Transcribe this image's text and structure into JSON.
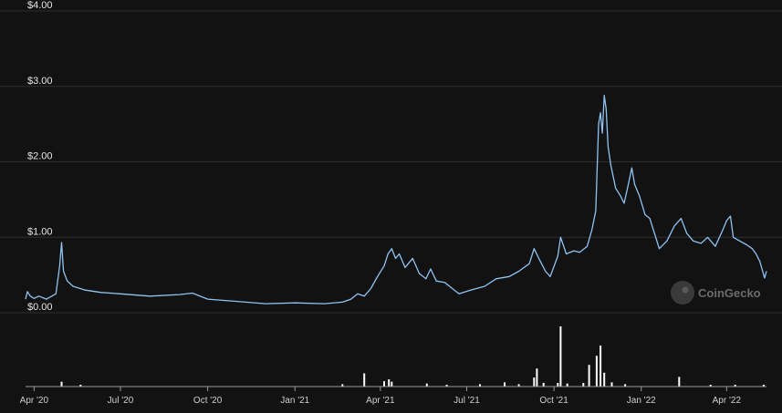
{
  "chart_data": {
    "type": "line",
    "background": "#121212",
    "line_color": "#8fc3f2",
    "grid_color": "#2f2f2f",
    "volume_color": "#ffffff",
    "grid": true,
    "y_ticks": [
      "$4.00",
      "$3.00",
      "$2.00",
      "$1.00",
      "$0.00"
    ],
    "y_tick_values": [
      4,
      3,
      2,
      1,
      0
    ],
    "ylim": [
      0,
      4
    ],
    "x_ticks": [
      "Apr '20",
      "Jul '20",
      "Oct '20",
      "Jan '21",
      "Apr '21",
      "Jul '21",
      "Oct '21",
      "Jan '22",
      "Apr '22"
    ],
    "x_tick_dates": [
      "2020-04-01",
      "2020-07-01",
      "2020-10-01",
      "2021-01-01",
      "2021-04-01",
      "2021-07-01",
      "2021-10-01",
      "2022-01-01",
      "2022-04-01"
    ],
    "x_range": [
      "2020-03-23",
      "2022-05-13"
    ],
    "price_series": {
      "name": "",
      "points": [
        [
          "2020-03-23",
          0.18
        ],
        [
          "2020-03-25",
          0.28
        ],
        [
          "2020-03-28",
          0.22
        ],
        [
          "2020-04-01",
          0.19
        ],
        [
          "2020-04-06",
          0.22
        ],
        [
          "2020-04-14",
          0.18
        ],
        [
          "2020-04-24",
          0.25
        ],
        [
          "2020-04-28",
          0.62
        ],
        [
          "2020-04-30",
          0.93
        ],
        [
          "2020-05-02",
          0.55
        ],
        [
          "2020-05-06",
          0.42
        ],
        [
          "2020-05-12",
          0.35
        ],
        [
          "2020-05-25",
          0.3
        ],
        [
          "2020-06-10",
          0.27
        ],
        [
          "2020-07-01",
          0.25
        ],
        [
          "2020-08-01",
          0.22
        ],
        [
          "2020-09-01",
          0.24
        ],
        [
          "2020-09-15",
          0.26
        ],
        [
          "2020-10-01",
          0.18
        ],
        [
          "2020-11-01",
          0.15
        ],
        [
          "2020-12-01",
          0.12
        ],
        [
          "2021-01-01",
          0.13
        ],
        [
          "2021-02-01",
          0.12
        ],
        [
          "2021-02-20",
          0.14
        ],
        [
          "2021-03-01",
          0.18
        ],
        [
          "2021-03-08",
          0.25
        ],
        [
          "2021-03-15",
          0.22
        ],
        [
          "2021-03-22",
          0.32
        ],
        [
          "2021-03-29",
          0.48
        ],
        [
          "2021-04-05",
          0.62
        ],
        [
          "2021-04-09",
          0.78
        ],
        [
          "2021-04-13",
          0.85
        ],
        [
          "2021-04-17",
          0.72
        ],
        [
          "2021-04-21",
          0.78
        ],
        [
          "2021-04-27",
          0.6
        ],
        [
          "2021-05-05",
          0.72
        ],
        [
          "2021-05-12",
          0.52
        ],
        [
          "2021-05-19",
          0.45
        ],
        [
          "2021-05-24",
          0.58
        ],
        [
          "2021-05-30",
          0.42
        ],
        [
          "2021-06-08",
          0.4
        ],
        [
          "2021-06-18",
          0.3
        ],
        [
          "2021-06-23",
          0.25
        ],
        [
          "2021-07-05",
          0.3
        ],
        [
          "2021-07-20",
          0.35
        ],
        [
          "2021-08-01",
          0.45
        ],
        [
          "2021-08-15",
          0.48
        ],
        [
          "2021-08-25",
          0.55
        ],
        [
          "2021-09-05",
          0.65
        ],
        [
          "2021-09-10",
          0.85
        ],
        [
          "2021-09-15",
          0.72
        ],
        [
          "2021-09-22",
          0.55
        ],
        [
          "2021-09-27",
          0.48
        ],
        [
          "2021-10-05",
          0.75
        ],
        [
          "2021-10-08",
          1.0
        ],
        [
          "2021-10-14",
          0.78
        ],
        [
          "2021-10-22",
          0.82
        ],
        [
          "2021-10-28",
          0.8
        ],
        [
          "2021-11-05",
          0.88
        ],
        [
          "2021-11-10",
          1.1
        ],
        [
          "2021-11-14",
          1.35
        ],
        [
          "2021-11-17",
          2.5
        ],
        [
          "2021-11-19",
          2.65
        ],
        [
          "2021-11-21",
          2.38
        ],
        [
          "2021-11-23",
          2.88
        ],
        [
          "2021-11-25",
          2.7
        ],
        [
          "2021-11-27",
          2.2
        ],
        [
          "2021-11-30",
          1.95
        ],
        [
          "2021-12-05",
          1.65
        ],
        [
          "2021-12-10",
          1.55
        ],
        [
          "2021-12-14",
          1.45
        ],
        [
          "2021-12-18",
          1.68
        ],
        [
          "2021-12-22",
          1.92
        ],
        [
          "2021-12-25",
          1.7
        ],
        [
          "2021-12-30",
          1.55
        ],
        [
          "2022-01-05",
          1.3
        ],
        [
          "2022-01-10",
          1.25
        ],
        [
          "2022-01-15",
          1.05
        ],
        [
          "2022-01-20",
          0.85
        ],
        [
          "2022-01-28",
          0.95
        ],
        [
          "2022-02-05",
          1.15
        ],
        [
          "2022-02-12",
          1.25
        ],
        [
          "2022-02-18",
          1.05
        ],
        [
          "2022-02-25",
          0.95
        ],
        [
          "2022-03-05",
          0.92
        ],
        [
          "2022-03-12",
          1.0
        ],
        [
          "2022-03-20",
          0.88
        ],
        [
          "2022-03-28",
          1.1
        ],
        [
          "2022-04-01",
          1.22
        ],
        [
          "2022-04-05",
          1.28
        ],
        [
          "2022-04-08",
          1.0
        ],
        [
          "2022-04-15",
          0.95
        ],
        [
          "2022-04-22",
          0.9
        ],
        [
          "2022-04-28",
          0.85
        ],
        [
          "2022-05-02",
          0.78
        ],
        [
          "2022-05-06",
          0.68
        ],
        [
          "2022-05-09",
          0.55
        ],
        [
          "2022-05-11",
          0.46
        ],
        [
          "2022-05-13",
          0.55
        ]
      ]
    },
    "volume_series": {
      "name": "",
      "relative_scale": "fraction of largest spike",
      "bars": [
        [
          "2020-04-30",
          0.08
        ],
        [
          "2020-05-20",
          0.03
        ],
        [
          "2021-02-20",
          0.04
        ],
        [
          "2021-03-15",
          0.22
        ],
        [
          "2021-04-05",
          0.09
        ],
        [
          "2021-04-10",
          0.12
        ],
        [
          "2021-04-13",
          0.08
        ],
        [
          "2021-05-20",
          0.05
        ],
        [
          "2021-06-10",
          0.03
        ],
        [
          "2021-07-15",
          0.04
        ],
        [
          "2021-08-10",
          0.07
        ],
        [
          "2021-08-25",
          0.04
        ],
        [
          "2021-09-10",
          0.15
        ],
        [
          "2021-09-13",
          0.3
        ],
        [
          "2021-09-20",
          0.06
        ],
        [
          "2021-10-05",
          0.06
        ],
        [
          "2021-10-08",
          1.0
        ],
        [
          "2021-10-15",
          0.05
        ],
        [
          "2021-11-01",
          0.06
        ],
        [
          "2021-11-07",
          0.36
        ],
        [
          "2021-11-15",
          0.51
        ],
        [
          "2021-11-19",
          0.68
        ],
        [
          "2021-11-23",
          0.23
        ],
        [
          "2021-12-01",
          0.07
        ],
        [
          "2021-12-15",
          0.04
        ],
        [
          "2022-02-10",
          0.16
        ],
        [
          "2022-03-15",
          0.03
        ],
        [
          "2022-04-10",
          0.03
        ],
        [
          "2022-05-10",
          0.03
        ]
      ]
    }
  },
  "watermark": {
    "text": "CoinGecko"
  }
}
